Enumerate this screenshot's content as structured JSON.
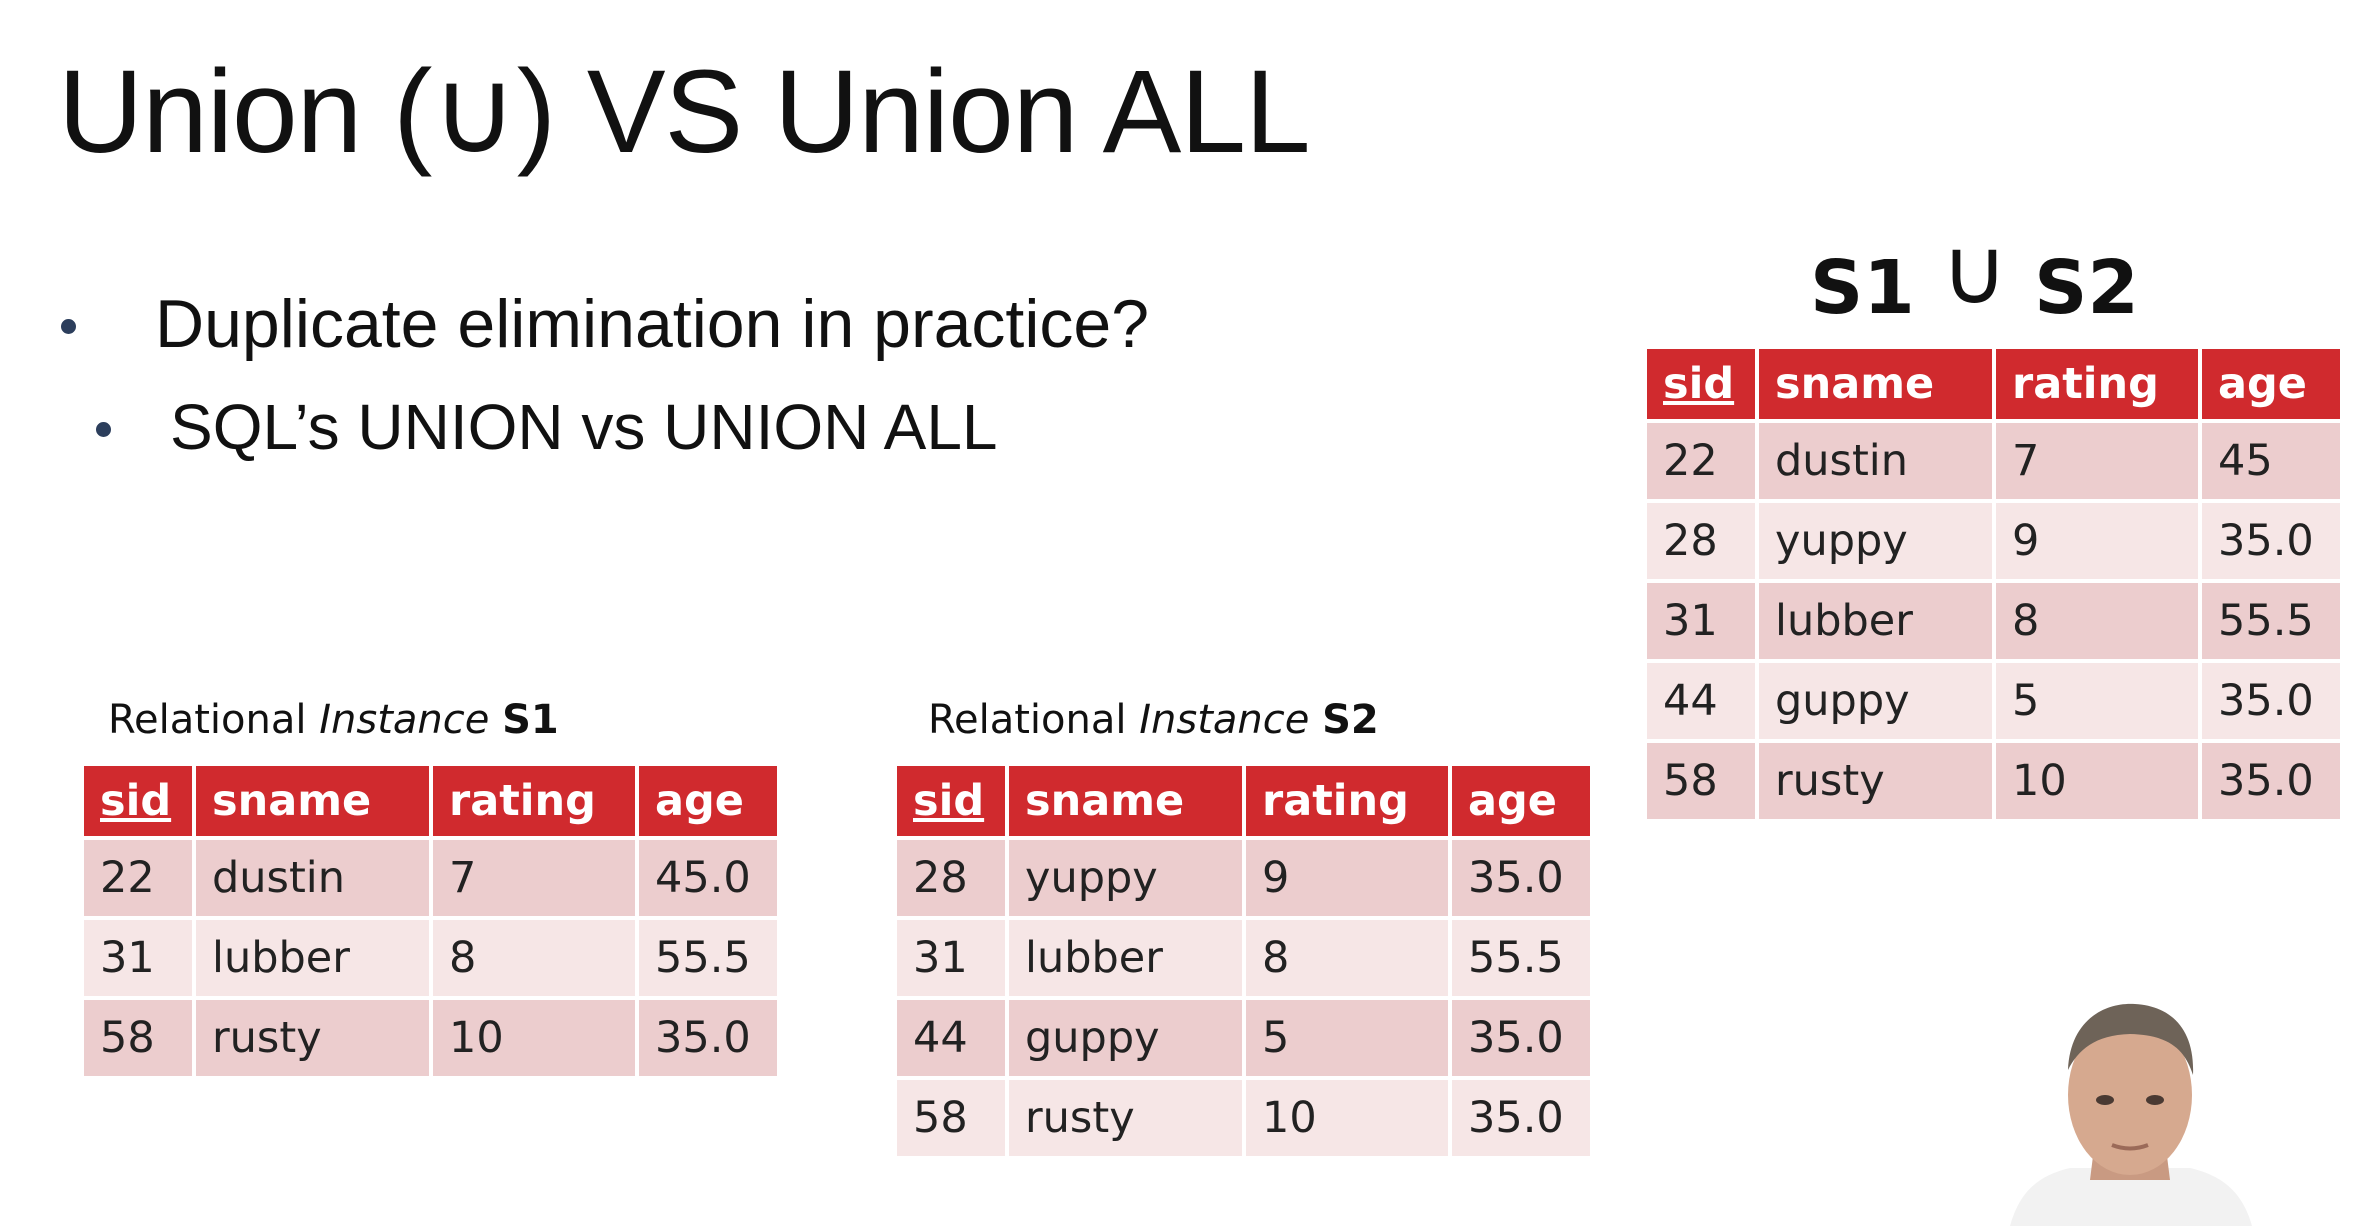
{
  "slide": {
    "title": "Union (∪) VS Union ALL",
    "bullets": [
      "Duplicate elimination in practice?",
      "SQL’s UNION vs UNION ALL"
    ]
  },
  "s1": {
    "caption_prefix": "Relational ",
    "caption_italic": "Instance",
    "caption_name": "S1",
    "headers": [
      "sid",
      "sname",
      "rating",
      "age"
    ],
    "rows": [
      [
        "22",
        "dustin",
        "7",
        "45.0"
      ],
      [
        "31",
        "lubber",
        "8",
        "55.5"
      ],
      [
        "58",
        "rusty",
        "10",
        "35.0"
      ]
    ]
  },
  "s2": {
    "caption_prefix": "Relational ",
    "caption_italic": "Instance",
    "caption_name": "S2",
    "headers": [
      "sid",
      "sname",
      "rating",
      "age"
    ],
    "rows": [
      [
        "28",
        "yuppy",
        "9",
        "35.0"
      ],
      [
        "31",
        "lubber",
        "8",
        "55.5"
      ],
      [
        "44",
        "guppy",
        "5",
        "35.0"
      ],
      [
        "58",
        "rusty",
        "10",
        "35.0"
      ]
    ]
  },
  "union": {
    "left": "S1",
    "symbol": "∪",
    "right": "S2",
    "headers": [
      "sid",
      "sname",
      "rating",
      "age"
    ],
    "rows": [
      [
        "22",
        "dustin",
        "7",
        "45"
      ],
      [
        "28",
        "yuppy",
        "9",
        "35.0"
      ],
      [
        "31",
        "lubber",
        "8",
        "55.5"
      ],
      [
        "44",
        "guppy",
        "5",
        "35.0"
      ],
      [
        "58",
        "rusty",
        "10",
        "35.0"
      ]
    ]
  },
  "colors": {
    "header_red": "#d02a2e",
    "row_dark": "#eccdce",
    "row_light": "#f6e6e6",
    "bullet_dot": "#2c3e5c"
  },
  "presenter": {
    "icon": "presenter-webcam-icon"
  }
}
